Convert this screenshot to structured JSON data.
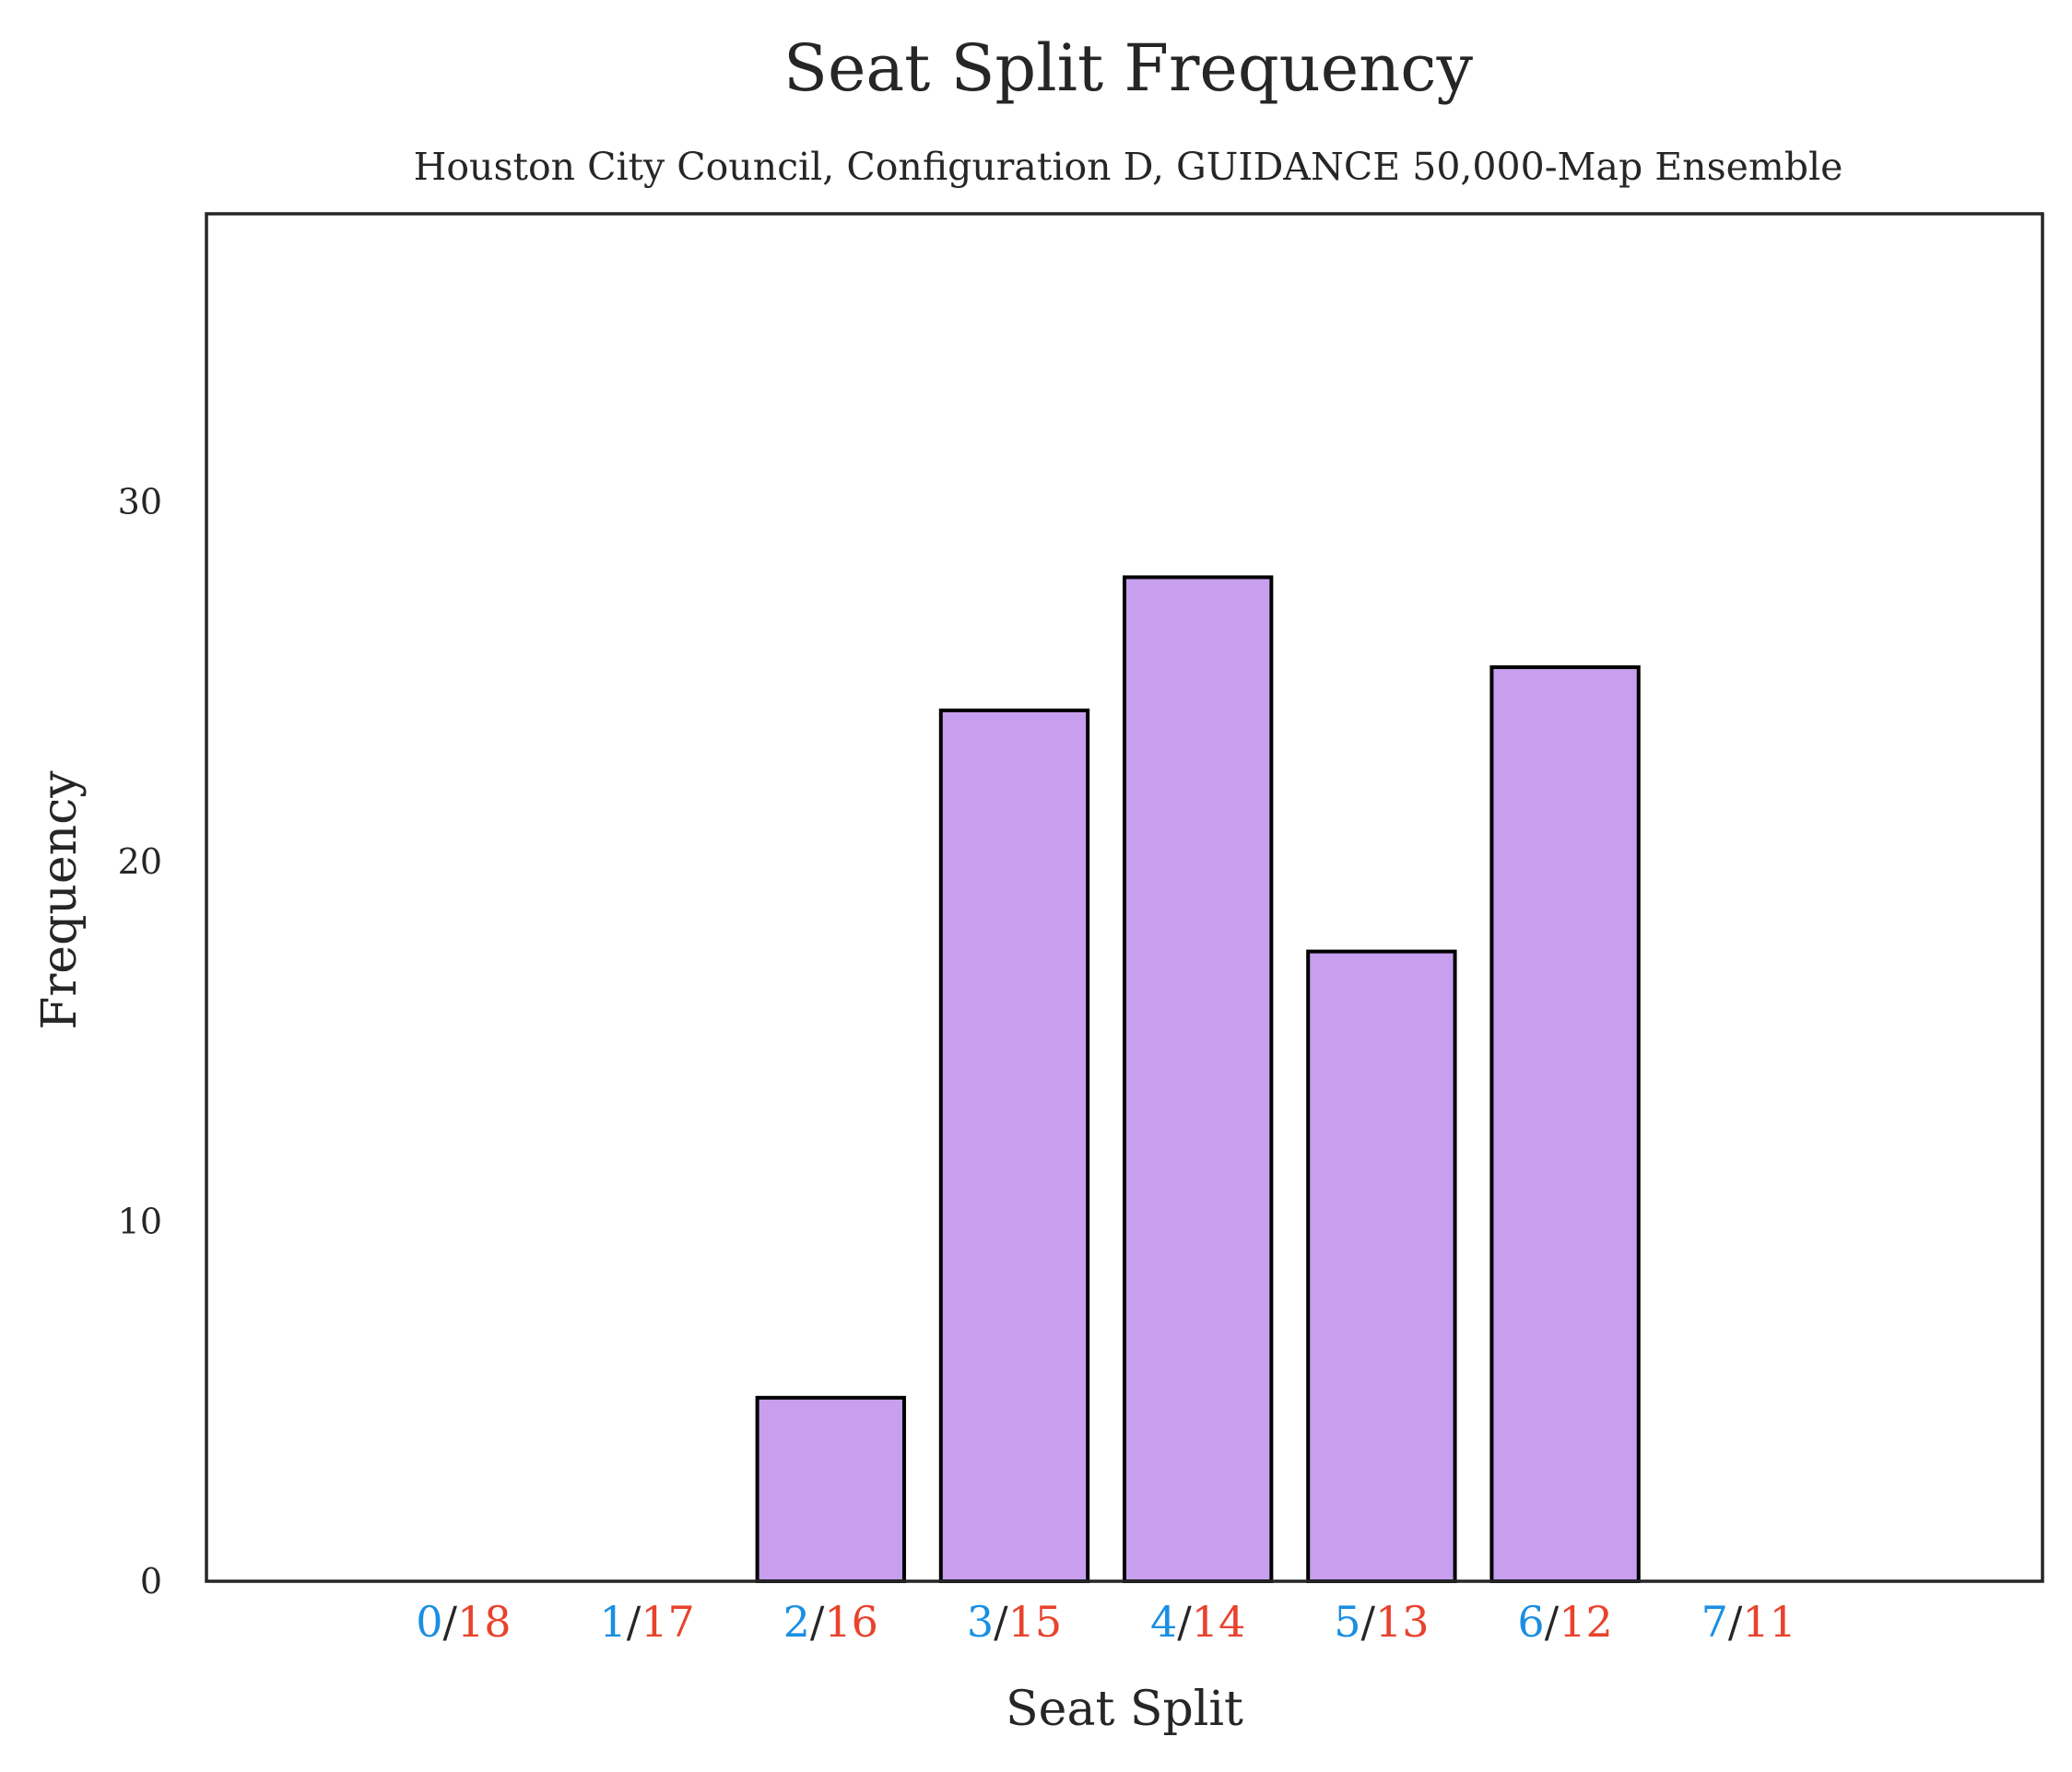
{
  "chart_data": {
    "type": "bar",
    "title": "Seat Split Frequency",
    "subtitle": "Houston City Council, Configuration D, GUIDANCE 50,000-Map Ensemble",
    "xlabel": "Seat Split",
    "ylabel": "Frequency",
    "categories": [
      "0/18",
      "1/17",
      "2/16",
      "3/15",
      "4/14",
      "5/13",
      "6/12",
      "7/11"
    ],
    "category_parts": [
      {
        "left": "0",
        "sep": "/",
        "right": "18"
      },
      {
        "left": "1",
        "sep": "/",
        "right": "17"
      },
      {
        "left": "2",
        "sep": "/",
        "right": "16"
      },
      {
        "left": "3",
        "sep": "/",
        "right": "15"
      },
      {
        "left": "4",
        "sep": "/",
        "right": "14"
      },
      {
        "left": "5",
        "sep": "/",
        "right": "13"
      },
      {
        "left": "6",
        "sep": "/",
        "right": "12"
      },
      {
        "left": "7",
        "sep": "/",
        "right": "11"
      }
    ],
    "values": [
      0,
      0,
      5.1,
      24.2,
      27.9,
      17.5,
      25.4,
      0
    ],
    "ylim": [
      0,
      38
    ],
    "xlim": [
      -1.4,
      8.6
    ],
    "yticks": [
      0,
      10,
      20,
      30
    ],
    "grid": false,
    "colors": {
      "bar_fill": "#c79fee",
      "bar_edge": "#000000",
      "left_number": "#1a8fe3",
      "right_number": "#e8432d",
      "separator": "#262626",
      "frame": "#262626",
      "text": "#262626"
    }
  }
}
